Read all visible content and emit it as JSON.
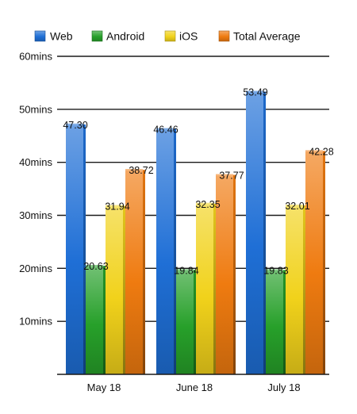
{
  "chart_data": {
    "type": "bar",
    "categories": [
      "May 18",
      "June 18",
      "July 18"
    ],
    "series": [
      {
        "name": "Web",
        "values": [
          47.3,
          46.46,
          53.49
        ],
        "color": "#1f6fd6",
        "labels": [
          "47.30",
          "46.46",
          "53.49"
        ]
      },
      {
        "name": "Android",
        "values": [
          20.63,
          19.84,
          19.83
        ],
        "color": "#27a02a",
        "labels": [
          "20.63",
          "19.84",
          "19.83"
        ]
      },
      {
        "name": "iOS",
        "values": [
          31.94,
          32.35,
          32.01
        ],
        "color": "#f1d21b",
        "labels": [
          "31.94",
          "32.35",
          "32.01"
        ]
      },
      {
        "name": "Total Average",
        "values": [
          38.72,
          37.77,
          42.28
        ],
        "color": "#ef7b10",
        "labels": [
          "38.72",
          "37.77",
          "42.28"
        ]
      }
    ],
    "yticks": [
      {
        "value": 10,
        "label": "10mins"
      },
      {
        "value": 20,
        "label": "20mins"
      },
      {
        "value": 30,
        "label": "30mins"
      },
      {
        "value": 40,
        "label": "40mins"
      },
      {
        "value": 50,
        "label": "50mins"
      },
      {
        "value": 60,
        "label": "60mins"
      }
    ],
    "ylim": [
      0,
      60
    ],
    "title": "",
    "xlabel": "",
    "ylabel": "",
    "grid": true,
    "legend": "top"
  }
}
